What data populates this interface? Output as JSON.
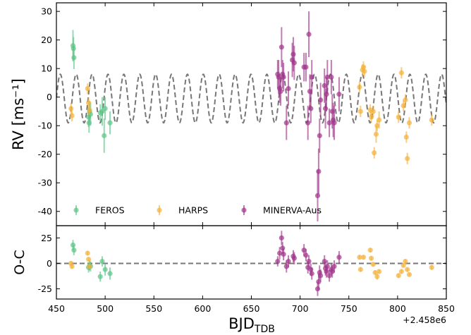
{
  "chart_data": [
    {
      "type": "scatter",
      "panel": "rv",
      "ylabel": "RV [ms⁻¹]",
      "xlim": [
        450,
        850
      ],
      "ylim": [
        -45,
        33
      ],
      "yticks": [
        -40,
        -30,
        -20,
        -10,
        0,
        10,
        20,
        30
      ],
      "model": {
        "name": "",
        "style": "dashed",
        "color": "#777777",
        "amplitude": 8.5,
        "offset": -0.5,
        "period": 16.3,
        "phase_ref": 454.0
      },
      "series": [
        {
          "name": "FEROS",
          "color": "#5cc486",
          "points": [
            {
              "x": 467,
              "y": 18.0,
              "err": 5.5
            },
            {
              "x": 467.5,
              "y": 17.0,
              "err": 4.0
            },
            {
              "x": 468,
              "y": 13.8,
              "err": 4.0
            },
            {
              "x": 483,
              "y": -7.0,
              "err": 3.5
            },
            {
              "x": 483.5,
              "y": -9.0,
              "err": 3.5
            },
            {
              "x": 484,
              "y": -5.0,
              "err": 3.5
            },
            {
              "x": 485,
              "y": -6.0,
              "err": 4.0
            },
            {
              "x": 495,
              "y": -5.5,
              "err": 3.0
            },
            {
              "x": 497,
              "y": -5.0,
              "err": 5.0
            },
            {
              "x": 499,
              "y": -13.5,
              "err": 6.0
            },
            {
              "x": 500,
              "y": -4.0,
              "err": 4.0
            },
            {
              "x": 505,
              "y": -9.0,
              "err": 4.0
            }
          ]
        },
        {
          "name": "HARPS",
          "color": "#f4b23a",
          "points": [
            {
              "x": 465,
              "y": -4.0,
              "err": 2.0
            },
            {
              "x": 466,
              "y": -6.5,
              "err": 2.0
            },
            {
              "x": 482,
              "y": 3.0,
              "err": 1.8
            },
            {
              "x": 483,
              "y": -2.0,
              "err": 1.8
            },
            {
              "x": 484,
              "y": -4.5,
              "err": 1.8
            },
            {
              "x": 761,
              "y": 3.5,
              "err": 2.0
            },
            {
              "x": 762,
              "y": -5.0,
              "err": 2.0
            },
            {
              "x": 764,
              "y": 9.5,
              "err": 2.0
            },
            {
              "x": 765,
              "y": 10.5,
              "err": 2.0
            },
            {
              "x": 766,
              "y": 9.0,
              "err": 2.0
            },
            {
              "x": 772,
              "y": -4.5,
              "err": 2.0
            },
            {
              "x": 773,
              "y": -7.0,
              "err": 2.0
            },
            {
              "x": 775,
              "y": -5.0,
              "err": 2.0
            },
            {
              "x": 776,
              "y": -19.5,
              "err": 2.0
            },
            {
              "x": 778,
              "y": -13.0,
              "err": 3.0
            },
            {
              "x": 779,
              "y": -10.0,
              "err": 2.0
            },
            {
              "x": 781,
              "y": -8.0,
              "err": 3.0
            },
            {
              "x": 801,
              "y": -7.0,
              "err": 2.0
            },
            {
              "x": 804,
              "y": 8.5,
              "err": 2.0
            },
            {
              "x": 806,
              "y": -3.0,
              "err": 2.0
            },
            {
              "x": 808,
              "y": -1.0,
              "err": 2.0
            },
            {
              "x": 809,
              "y": -14.0,
              "err": 2.0
            },
            {
              "x": 810,
              "y": -21.5,
              "err": 2.0
            },
            {
              "x": 812,
              "y": -9.0,
              "err": 2.0
            },
            {
              "x": 835,
              "y": -8.0,
              "err": 2.0
            }
          ]
        },
        {
          "name": "MINERVA-Aus",
          "color": "#a0358a",
          "points": [
            {
              "x": 677,
              "y": 8.0,
              "err": 5.0
            },
            {
              "x": 678,
              "y": 7.0,
              "err": 6.0
            },
            {
              "x": 679,
              "y": 3.0,
              "err": 5.0
            },
            {
              "x": 680,
              "y": 2.0,
              "err": 5.0
            },
            {
              "x": 681,
              "y": 17.5,
              "err": 7.0
            },
            {
              "x": 682,
              "y": 8.0,
              "err": 5.0
            },
            {
              "x": 683,
              "y": 7.0,
              "err": 5.0
            },
            {
              "x": 686,
              "y": -9.0,
              "err": 6.0
            },
            {
              "x": 688,
              "y": 3.0,
              "err": 6.0
            },
            {
              "x": 692,
              "y": 13.0,
              "err": 6.0
            },
            {
              "x": 693,
              "y": 15.0,
              "err": 6.0
            },
            {
              "x": 694,
              "y": 12.0,
              "err": 6.0
            },
            {
              "x": 704,
              "y": 10.5,
              "err": 5.0
            },
            {
              "x": 706,
              "y": 10.5,
              "err": 5.0
            },
            {
              "x": 708,
              "y": -9.0,
              "err": 6.0
            },
            {
              "x": 709,
              "y": 22.0,
              "err": 8.0
            },
            {
              "x": 710,
              "y": 2.0,
              "err": 6.0
            },
            {
              "x": 711,
              "y": -4.0,
              "err": 5.0
            },
            {
              "x": 712,
              "y": 7.0,
              "err": 6.0
            },
            {
              "x": 718,
              "y": -34.5,
              "err": 9.0
            },
            {
              "x": 719,
              "y": -26.0,
              "err": 8.0
            },
            {
              "x": 720,
              "y": -13.5,
              "err": 6.0
            },
            {
              "x": 721,
              "y": -1.0,
              "err": 6.0
            },
            {
              "x": 725,
              "y": 4.0,
              "err": 6.0
            },
            {
              "x": 726,
              "y": -4.0,
              "err": 7.0
            },
            {
              "x": 727,
              "y": 1.0,
              "err": 6.0
            },
            {
              "x": 728,
              "y": 7.0,
              "err": 6.0
            },
            {
              "x": 730,
              "y": -9.0,
              "err": 5.0
            },
            {
              "x": 732,
              "y": 7.0,
              "err": 6.0
            },
            {
              "x": 733,
              "y": -5.0,
              "err": 6.0
            },
            {
              "x": 734,
              "y": -8.0,
              "err": 6.0
            },
            {
              "x": 735,
              "y": -9.0,
              "err": 6.0
            },
            {
              "x": 740,
              "y": 1.0,
              "err": 6.0
            }
          ]
        }
      ],
      "legend": "bottom-left"
    },
    {
      "type": "scatter",
      "panel": "residuals",
      "ylabel": "O-C",
      "xlabel": "BJD",
      "xlabel_subscript": "TDB",
      "offset_label": "+2.458e6",
      "xlim": [
        450,
        850
      ],
      "ylim": [
        -35,
        37
      ],
      "yticks": [
        -25,
        0,
        25
      ],
      "xticks": [
        450,
        500,
        550,
        600,
        650,
        700,
        750,
        800,
        850
      ],
      "zero_line": {
        "y": 0,
        "style": "dashed",
        "color": "#777777"
      },
      "series": [
        {
          "name": "FEROS",
          "color": "#5cc486",
          "points": [
            {
              "x": 467,
              "y": 18.0,
              "err": 5.0
            },
            {
              "x": 468,
              "y": 13.0,
              "err": 5.0
            },
            {
              "x": 483,
              "y": -4.0,
              "err": 5.0
            },
            {
              "x": 484,
              "y": -2.0,
              "err": 5.0
            },
            {
              "x": 485,
              "y": -3.0,
              "err": 5.0
            },
            {
              "x": 495,
              "y": -13.0,
              "err": 5.0
            },
            {
              "x": 497,
              "y": 2.0,
              "err": 5.0
            },
            {
              "x": 500,
              "y": -6.0,
              "err": 6.0
            },
            {
              "x": 505,
              "y": -10.0,
              "err": 6.0
            }
          ]
        },
        {
          "name": "HARPS",
          "color": "#f4b23a",
          "points": [
            {
              "x": 465,
              "y": 0.0,
              "err": 2.0
            },
            {
              "x": 466,
              "y": -3.0,
              "err": 2.0
            },
            {
              "x": 482,
              "y": 10.0,
              "err": 2.0
            },
            {
              "x": 483,
              "y": 4.0,
              "err": 2.0
            },
            {
              "x": 484,
              "y": -3.0,
              "err": 2.0
            },
            {
              "x": 761,
              "y": 6.0,
              "err": 2.0
            },
            {
              "x": 762,
              "y": -6.0,
              "err": 2.0
            },
            {
              "x": 765,
              "y": 6.0,
              "err": 2.0
            },
            {
              "x": 772,
              "y": 13.0,
              "err": 2.0
            },
            {
              "x": 773,
              "y": 5.0,
              "err": 2.0
            },
            {
              "x": 775,
              "y": -1.0,
              "err": 2.0
            },
            {
              "x": 777,
              "y": -9.0,
              "err": 2.0
            },
            {
              "x": 779,
              "y": -13.0,
              "err": 3.0
            },
            {
              "x": 781,
              "y": -8.0,
              "err": 2.0
            },
            {
              "x": 801,
              "y": -12.0,
              "err": 2.0
            },
            {
              "x": 804,
              "y": -8.0,
              "err": 2.0
            },
            {
              "x": 806,
              "y": -2.0,
              "err": 2.0
            },
            {
              "x": 808,
              "y": 2.0,
              "err": 2.0
            },
            {
              "x": 810,
              "y": -6.0,
              "err": 2.0
            },
            {
              "x": 812,
              "y": -11.0,
              "err": 2.0
            },
            {
              "x": 835,
              "y": -4.0,
              "err": 2.0
            }
          ]
        },
        {
          "name": "MINERVA-Aus",
          "color": "#a0358a",
          "points": [
            {
              "x": 677,
              "y": 2.0,
              "err": 5.0
            },
            {
              "x": 679,
              "y": 10.0,
              "err": 6.0
            },
            {
              "x": 681,
              "y": 25.0,
              "err": 7.0
            },
            {
              "x": 682,
              "y": 15.0,
              "err": 6.0
            },
            {
              "x": 683,
              "y": 9.0,
              "err": 6.0
            },
            {
              "x": 686,
              "y": -3.0,
              "err": 6.0
            },
            {
              "x": 688,
              "y": 2.0,
              "err": 6.0
            },
            {
              "x": 693,
              "y": 7.0,
              "err": 6.0
            },
            {
              "x": 694,
              "y": 5.0,
              "err": 6.0
            },
            {
              "x": 704,
              "y": 13.0,
              "err": 6.0
            },
            {
              "x": 706,
              "y": 8.0,
              "err": 6.0
            },
            {
              "x": 708,
              "y": -4.0,
              "err": 6.0
            },
            {
              "x": 709,
              "y": 2.0,
              "err": 6.0
            },
            {
              "x": 711,
              "y": -6.0,
              "err": 6.0
            },
            {
              "x": 712,
              "y": -10.0,
              "err": 6.0
            },
            {
              "x": 718,
              "y": -25.0,
              "err": 7.0
            },
            {
              "x": 719,
              "y": -18.0,
              "err": 8.0
            },
            {
              "x": 720,
              "y": -9.0,
              "err": 7.0
            },
            {
              "x": 721,
              "y": -12.0,
              "err": 6.0
            },
            {
              "x": 725,
              "y": 2.0,
              "err": 6.0
            },
            {
              "x": 726,
              "y": -5.0,
              "err": 7.0
            },
            {
              "x": 727,
              "y": -8.0,
              "err": 6.0
            },
            {
              "x": 728,
              "y": -3.0,
              "err": 6.0
            },
            {
              "x": 730,
              "y": -12.0,
              "err": 6.0
            },
            {
              "x": 732,
              "y": -6.0,
              "err": 6.0
            },
            {
              "x": 733,
              "y": -8.0,
              "err": 6.0
            },
            {
              "x": 735,
              "y": -3.0,
              "err": 6.0
            },
            {
              "x": 740,
              "y": 6.0,
              "err": 6.0
            }
          ]
        }
      ]
    }
  ]
}
